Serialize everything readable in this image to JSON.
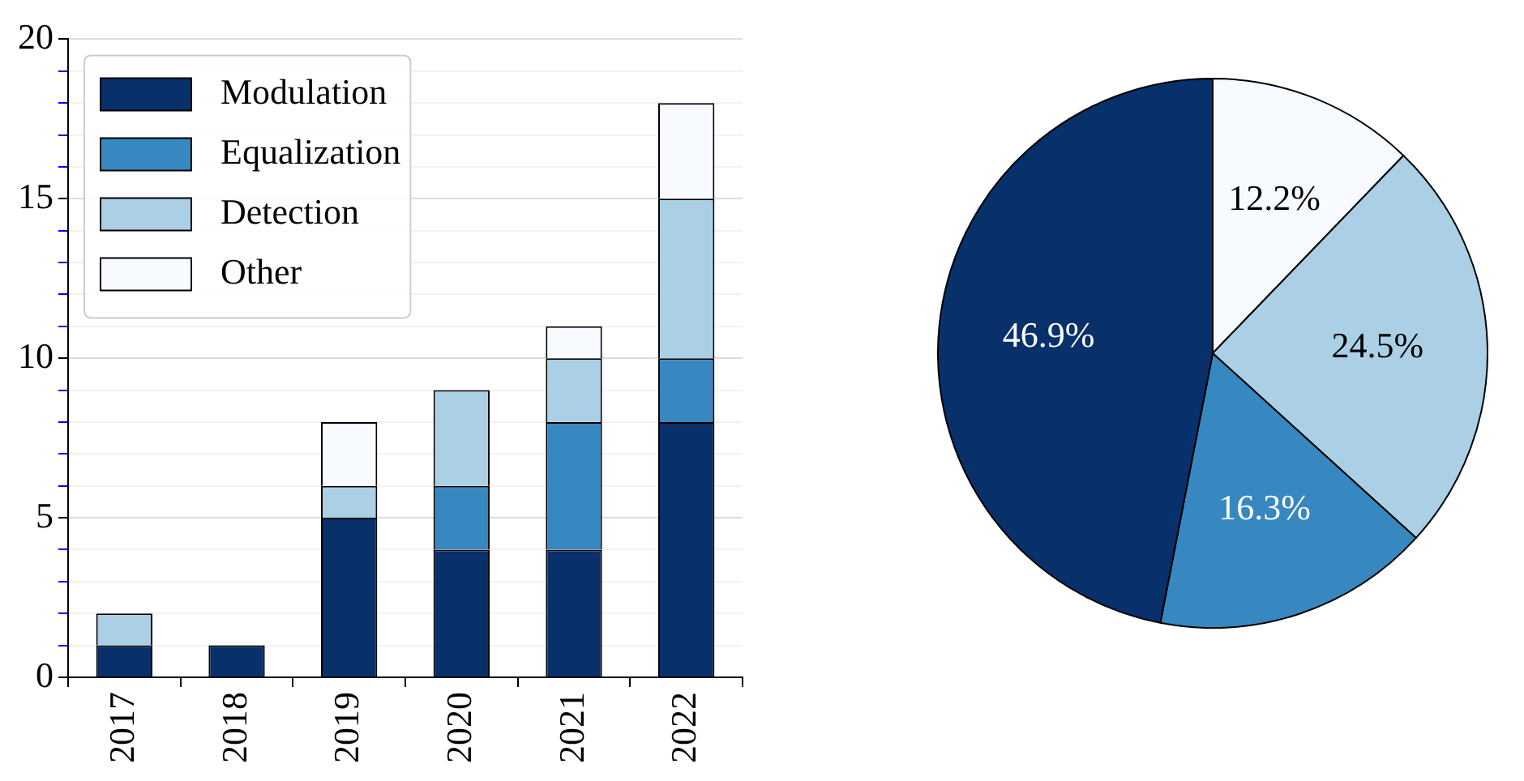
{
  "chart_data": [
    {
      "type": "bar",
      "stacked": true,
      "categories": [
        "2017",
        "2018",
        "2019",
        "2020",
        "2021",
        "2022"
      ],
      "series": [
        {
          "name": "Modulation",
          "color": "#08306b",
          "values": [
            1,
            1,
            5,
            4,
            4,
            8
          ]
        },
        {
          "name": "Equalization",
          "color": "#3787c0",
          "values": [
            0,
            0,
            0,
            2,
            4,
            2
          ]
        },
        {
          "name": "Detection",
          "color": "#abd0e6",
          "values": [
            1,
            0,
            1,
            3,
            2,
            5
          ]
        },
        {
          "name": "Other",
          "color": "#f7fbff",
          "values": [
            0,
            0,
            2,
            0,
            1,
            3
          ]
        }
      ],
      "ylim": [
        0,
        20
      ],
      "yticks": [
        0,
        {
          "value": 1,
          "label": null
        },
        {
          "value": 2,
          "label": null
        },
        {
          "value": 3,
          "label": null
        },
        {
          "value": 4,
          "label": null
        },
        5,
        {
          "value": 6,
          "label": null
        },
        {
          "value": 7,
          "label": null
        },
        {
          "value": 8,
          "label": null
        },
        {
          "value": 9,
          "label": null
        },
        10,
        {
          "value": 11,
          "label": null
        },
        {
          "value": 12,
          "label": null
        },
        {
          "value": 13,
          "label": null
        },
        {
          "value": 14,
          "label": null
        },
        15,
        {
          "value": 16,
          "label": null
        },
        {
          "value": 17,
          "label": null
        },
        {
          "value": 18,
          "label": null
        },
        {
          "value": 19,
          "label": null
        },
        20
      ],
      "grid": true,
      "legend": "top left"
    },
    {
      "type": "pie",
      "categories": [
        null,
        null,
        null,
        null
      ],
      "values": [
        12.2,
        24.5,
        16.3,
        46.9
      ],
      "colors": [
        "#f7fbff",
        "#abd0e6",
        "#3787c0",
        "#08306b"
      ],
      "value_labels": [
        "12.2%",
        "24.5%",
        "16.3%",
        "46.9%"
      ]
    }
  ]
}
